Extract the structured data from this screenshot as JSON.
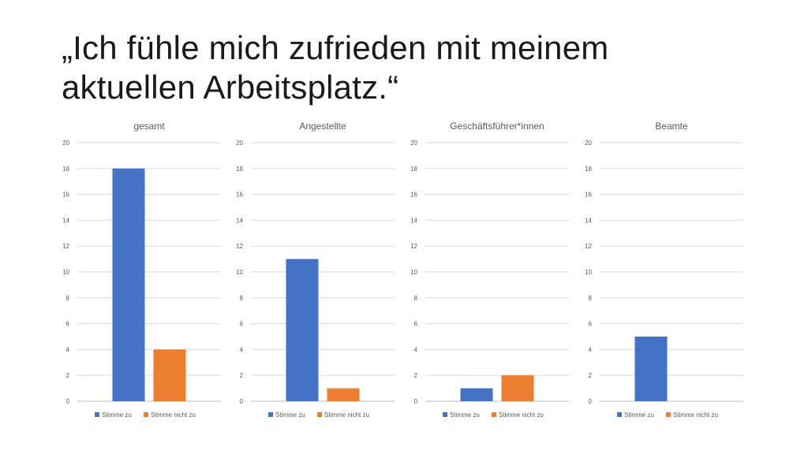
{
  "slide": {
    "title_line1": "„Ich fühle mich zufrieden mit meinem",
    "title_line2": "aktuellen Arbeitsplatz.“"
  },
  "colors": {
    "series1": "#4472C4",
    "series2": "#ED7D31",
    "grid": "#D9D9D9",
    "text": "#595959"
  },
  "chart_data": [
    {
      "type": "bar",
      "title": "gesamt",
      "categories": [
        ""
      ],
      "series": [
        {
          "name": "Stimme zu",
          "values": [
            18
          ]
        },
        {
          "name": "Stimme nicht zu",
          "values": [
            4
          ]
        }
      ],
      "ylim": [
        0,
        20
      ],
      "yticks": [
        0,
        2,
        4,
        6,
        8,
        10,
        12,
        14,
        16,
        18,
        20
      ],
      "grid": true,
      "legend": "bottom"
    },
    {
      "type": "bar",
      "title": "Angestellte",
      "categories": [
        ""
      ],
      "series": [
        {
          "name": "Stimme zu",
          "values": [
            11
          ]
        },
        {
          "name": "Stimme nicht zu",
          "values": [
            1
          ]
        }
      ],
      "ylim": [
        0,
        20
      ],
      "yticks": [
        0,
        2,
        4,
        6,
        8,
        10,
        12,
        14,
        16,
        18,
        20
      ],
      "grid": true,
      "legend": "bottom"
    },
    {
      "type": "bar",
      "title": "Geschäftsführer*innen",
      "categories": [
        ""
      ],
      "series": [
        {
          "name": "Stimme zu",
          "values": [
            1
          ]
        },
        {
          "name": "Stimme nicht zu",
          "values": [
            2
          ]
        }
      ],
      "ylim": [
        0,
        20
      ],
      "yticks": [
        0,
        2,
        4,
        6,
        8,
        10,
        12,
        14,
        16,
        18,
        20
      ],
      "grid": true,
      "legend": "bottom"
    },
    {
      "type": "bar",
      "title": "Beamte",
      "categories": [
        ""
      ],
      "series": [
        {
          "name": "Stimme zu",
          "values": [
            5
          ]
        },
        {
          "name": "Stimme nicht zu",
          "values": [
            0
          ]
        }
      ],
      "ylim": [
        0,
        20
      ],
      "yticks": [
        0,
        2,
        4,
        6,
        8,
        10,
        12,
        14,
        16,
        18,
        20
      ],
      "grid": true,
      "legend": "bottom"
    }
  ]
}
